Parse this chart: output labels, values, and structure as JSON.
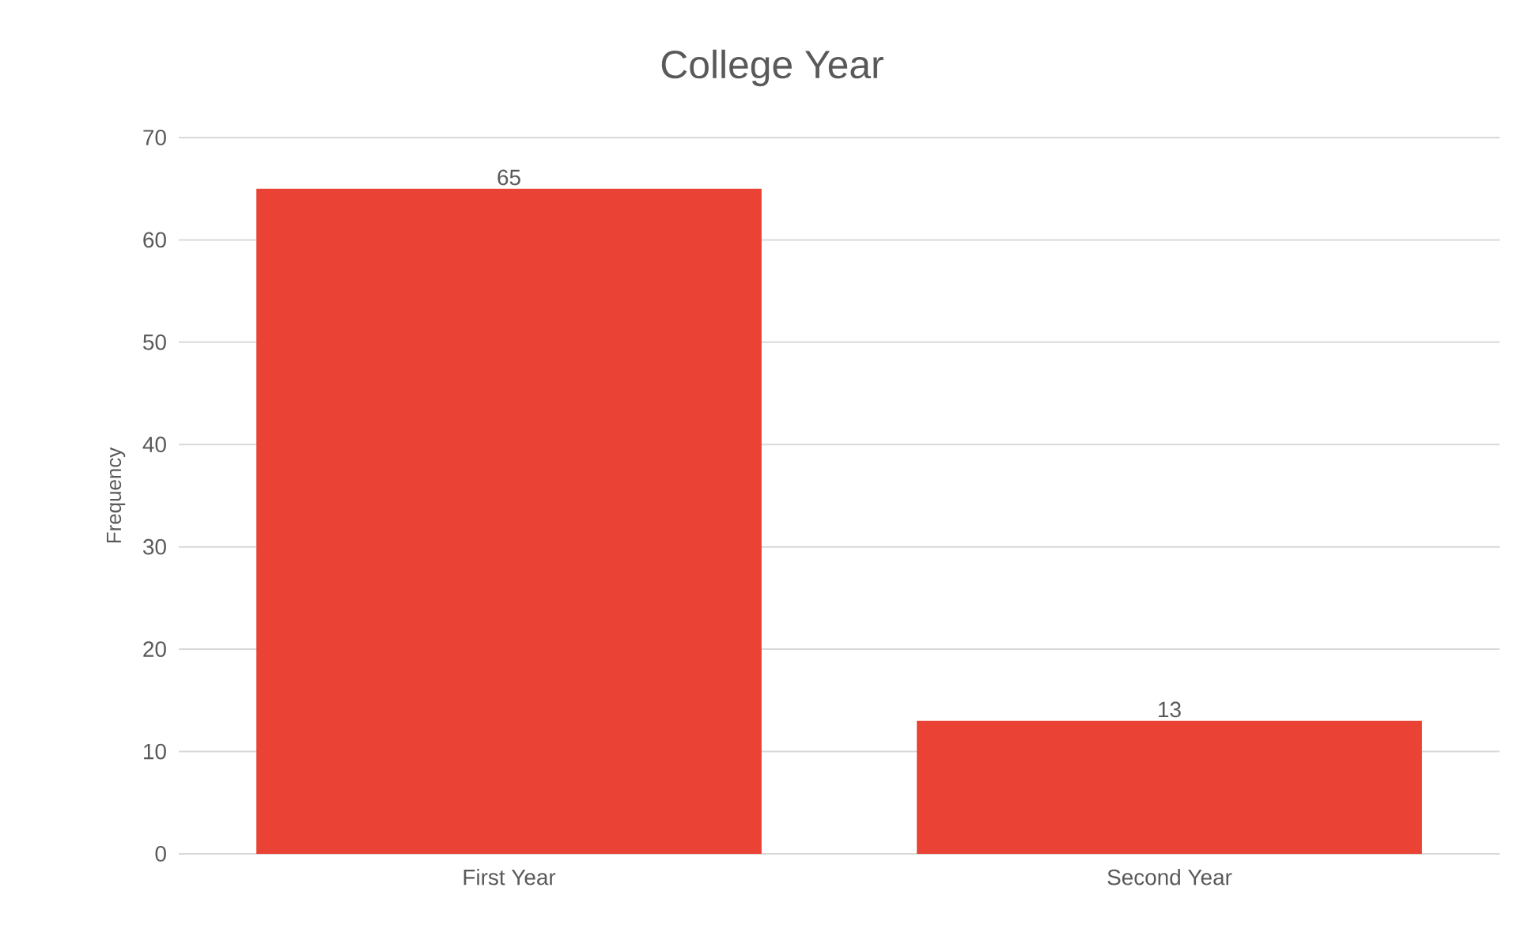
{
  "chart_data": {
    "type": "bar",
    "title": "College Year",
    "ylabel": "Frequency",
    "categories": [
      "First Year",
      "Second Year"
    ],
    "values": [
      65,
      13
    ],
    "color": "#ea4335",
    "ylim": [
      0,
      70
    ],
    "yticks": [
      0,
      10,
      20,
      30,
      40,
      50,
      60,
      70
    ],
    "grid": "y",
    "data_labels": true
  }
}
